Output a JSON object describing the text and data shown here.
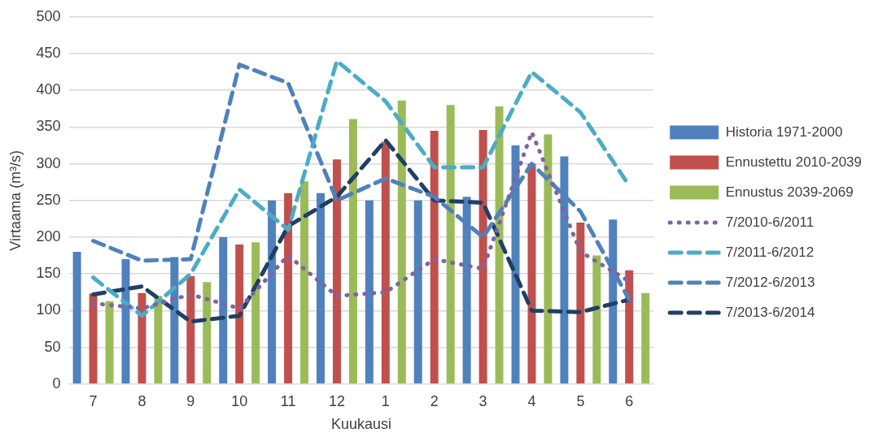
{
  "chart_data": {
    "type": "bar",
    "xlabel": "Kuukausi",
    "ylabel": "Virtaama (m³/s)",
    "categories": [
      "7",
      "8",
      "9",
      "10",
      "11",
      "12",
      "1",
      "2",
      "3",
      "4",
      "5",
      "6"
    ],
    "ylim": [
      0,
      500
    ],
    "yticks": [
      0,
      50,
      100,
      150,
      200,
      250,
      300,
      350,
      400,
      450,
      500
    ],
    "grid": "y",
    "legend": "right",
    "marker": "none",
    "series": [
      {
        "name": "Historia 1971-2000",
        "color": "#4f81bd",
        "values": [
          180,
          170,
          173,
          200,
          250,
          260,
          250,
          250,
          255,
          325,
          310,
          224
        ]
      },
      {
        "name": "Ennustettu 2010-2039",
        "color": "#c0504d",
        "values": [
          123,
          124,
          147,
          190,
          260,
          306,
          330,
          345,
          346,
          300,
          220,
          155
        ]
      },
      {
        "name": "Ennustus 2039-2069",
        "color": "#9bbb59",
        "values": [
          113,
          120,
          139,
          193,
          276,
          361,
          386,
          380,
          378,
          340,
          175,
          124
        ]
      },
      {
        "name": "7/2010-6/2011",
        "type": "line",
        "line_style": "dotted",
        "color": "#8064a2",
        "values": [
          110,
          103,
          122,
          103,
          175,
          120,
          125,
          170,
          157,
          343,
          180,
          140
        ]
      },
      {
        "name": "7/2011-6/2012",
        "type": "line",
        "line_style": "dashed",
        "color": "#4bacc6",
        "values": [
          145,
          93,
          150,
          265,
          210,
          440,
          385,
          295,
          295,
          425,
          370,
          270
        ]
      },
      {
        "name": "7/2012-6/2013",
        "type": "line",
        "line_style": "dashed",
        "color": "#4f81bd",
        "values": [
          195,
          168,
          170,
          435,
          410,
          250,
          280,
          255,
          200,
          300,
          235,
          115
        ]
      },
      {
        "name": "7/2013-6/2014",
        "type": "line",
        "line_style": "dashed",
        "color": "#1f3f66",
        "values": [
          122,
          133,
          85,
          93,
          215,
          255,
          332,
          250,
          247,
          100,
          98,
          115
        ]
      }
    ]
  }
}
